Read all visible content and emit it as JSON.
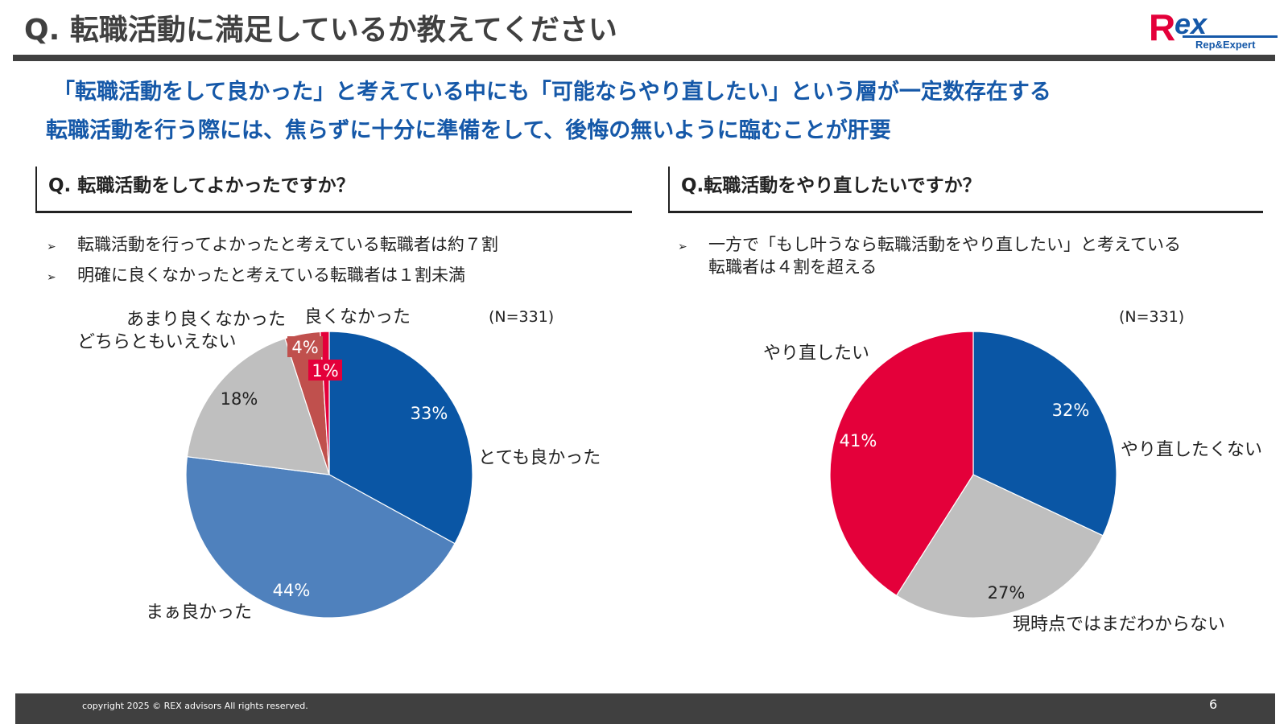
{
  "title": "Q. 転職活動に満足しているか教えてください",
  "logo": {
    "text": "Rex",
    "sub": "Rep&Expert"
  },
  "subheads": [
    "「転職活動をして良かった」と考えている中にも「可能ならやり直したい」という層が一定数存在する",
    "転職活動を行う際には、焦らずに十分に準備をして、後悔の無いように臨むことが肝要"
  ],
  "left": {
    "question": "Q. 転職活動をしてよかったですか？",
    "bullet_marker": "➢",
    "bullets": [
      "転職活動を行ってよかったと考えている転職者は約７割",
      "明確に良くなかったと考えている転職者は１割未満"
    ],
    "n_label": "(N=331)"
  },
  "right": {
    "question": "Q.転職活動をやり直したいですか？",
    "bullet_marker": "➢",
    "bullets": [
      "一方で「もし叶うなら転職活動をやり直したい」と考えている",
      "転職者は４割を超える"
    ],
    "n_label": "(N=331)"
  },
  "chart_data": [
    {
      "type": "pie",
      "start_angle_deg": 0,
      "direction": "clockwise",
      "slices": [
        {
          "label": "とても良かった",
          "value": 33,
          "pct_label": "33%",
          "color": "#0a56a5"
        },
        {
          "label": "まぁ良かった",
          "value": 44,
          "pct_label": "44%",
          "color": "#4f81bd"
        },
        {
          "label": "どちらともいえない",
          "value": 18,
          "pct_label": "18%",
          "color": "#bfbfbf"
        },
        {
          "label": "あまり良くなかった",
          "value": 4,
          "pct_label": "4%",
          "color": "#c0504d"
        },
        {
          "label": "良くなかった",
          "value": 1,
          "pct_label": "1%",
          "color": "#e4003a"
        }
      ]
    },
    {
      "type": "pie",
      "start_angle_deg": 0,
      "direction": "clockwise",
      "slices": [
        {
          "label": "やり直したくない",
          "value": 32,
          "pct_label": "32%",
          "color": "#0a56a5"
        },
        {
          "label": "現時点ではまだわからない",
          "value": 27,
          "pct_label": "27%",
          "color": "#bfbfbf"
        },
        {
          "label": "やり直したい",
          "value": 41,
          "pct_label": "41%",
          "color": "#e4003a"
        }
      ]
    }
  ],
  "footer": {
    "copyright": "copyright 2025 © REX advisors All rights reserved.",
    "page": "6"
  },
  "colors": {
    "accent": "#1558a8",
    "dark": "#404040"
  }
}
